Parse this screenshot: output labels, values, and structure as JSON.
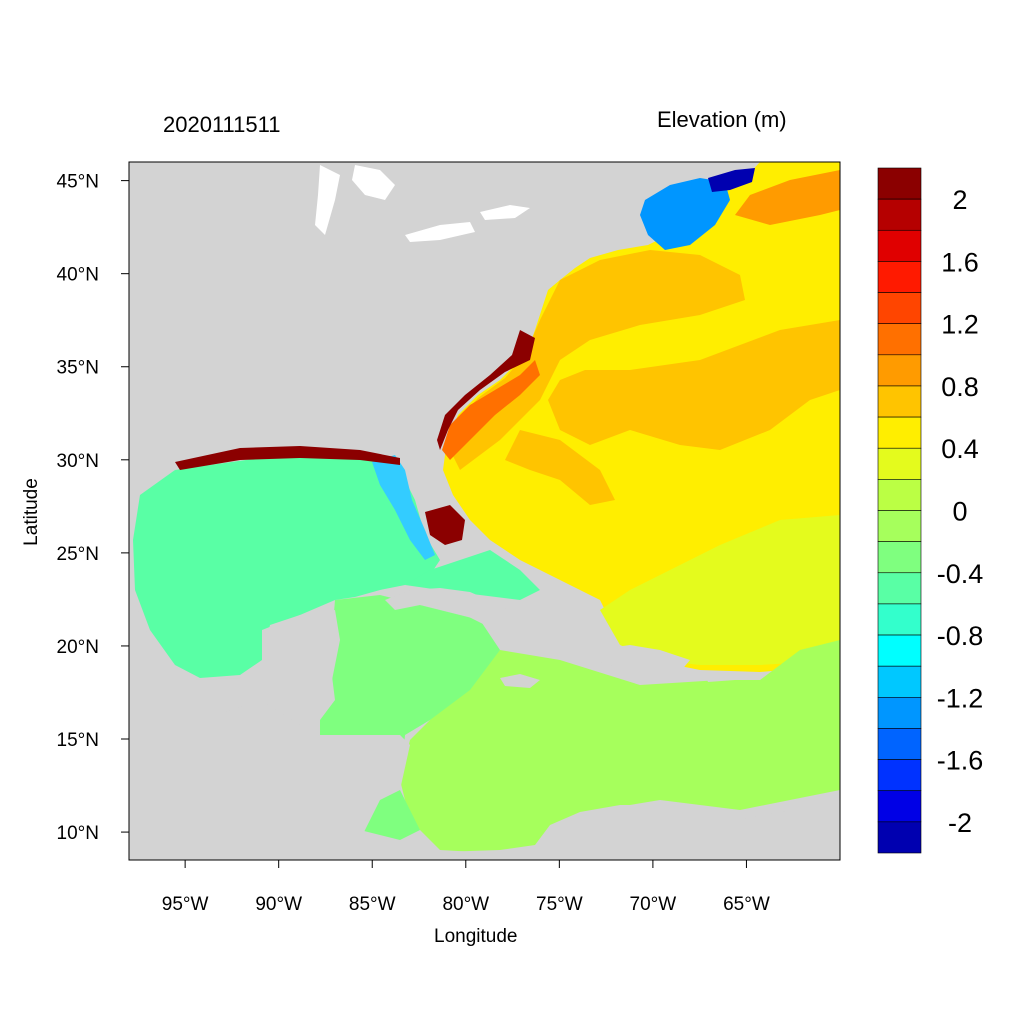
{
  "header": {
    "date_label": "2020111511",
    "variable_label": "Elevation (m)"
  },
  "axes": {
    "xlabel": "Longitude",
    "ylabel": "Latitude",
    "x_ticks": [
      "95°W",
      "90°W",
      "85°W",
      "80°W",
      "75°W",
      "70°W",
      "65°W"
    ],
    "y_ticks": [
      "45°N",
      "40°N",
      "35°N",
      "30°N",
      "25°N",
      "20°N",
      "15°N",
      "10°N"
    ],
    "lon_range": [
      -98,
      -60
    ],
    "lat_range": [
      8.5,
      46
    ]
  },
  "colorbar": {
    "labels": [
      "2",
      "1.6",
      "1.2",
      "0.8",
      "0.4",
      "0",
      "-0.4",
      "-0.8",
      "-1.2",
      "-1.6",
      "-2"
    ],
    "colors": [
      "#8b0000",
      "#b50000",
      "#e00000",
      "#ff1a00",
      "#ff4500",
      "#ff7000",
      "#ff9b00",
      "#ffc400",
      "#ffee00",
      "#e4fb1d",
      "#bbff44",
      "#a6ff5c",
      "#7fff7f",
      "#59ffa5",
      "#33ffcc",
      "#00ffff",
      "#00c8ff",
      "#0096ff",
      "#0064ff",
      "#0032ff",
      "#0000e6",
      "#0000b0"
    ]
  },
  "colors": {
    "land": "#d3d3d3",
    "gulf": "#59ffa5",
    "caribbean_west": "#7fff7f",
    "caribbean_east": "#a6ff5c",
    "atlantic_south": "#e4fb1d",
    "atlantic_main": "#ffee00",
    "atlantic_orange": "#ffc400",
    "coastal_red": "#8b0000",
    "gulf_of_maine": "#0096ff"
  }
}
